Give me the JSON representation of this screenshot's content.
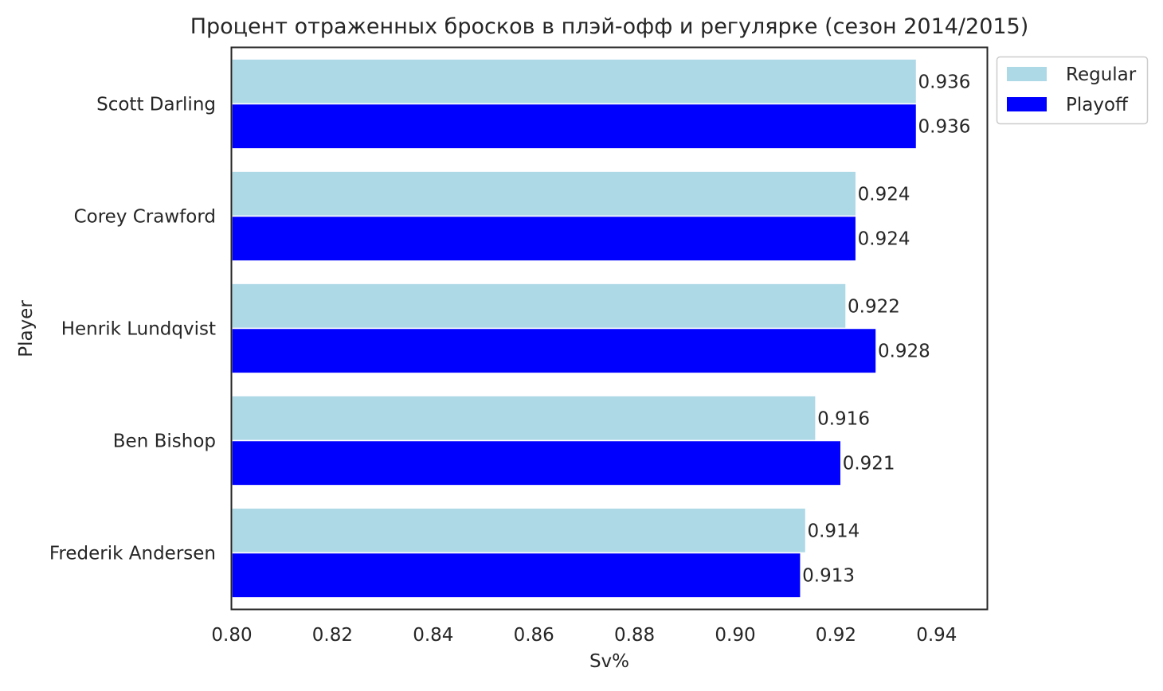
{
  "chart_data": {
    "type": "bar",
    "orientation": "horizontal",
    "title": "Процент отраженных бросков в плэй-офф и регулярке (сезон 2014/2015)",
    "xlabel": "Sv%",
    "ylabel": "Player",
    "categories": [
      "Scott Darling",
      "Corey Crawford",
      "Henrik Lundqvist",
      "Ben Bishop",
      "Frederik Andersen"
    ],
    "series": [
      {
        "name": "Regular",
        "color": "#add8e6",
        "values": [
          0.936,
          0.924,
          0.922,
          0.916,
          0.914
        ],
        "labels": [
          "0.936",
          "0.924",
          "0.922",
          "0.916",
          "0.914"
        ]
      },
      {
        "name": "Playoff",
        "color": "#0000ff",
        "values": [
          0.936,
          0.924,
          0.928,
          0.921,
          0.913
        ],
        "labels": [
          "0.936",
          "0.924",
          "0.928",
          "0.921",
          "0.913"
        ]
      }
    ],
    "xlim": [
      0.8,
      0.95
    ],
    "xticks": [
      "0.80",
      "0.82",
      "0.84",
      "0.86",
      "0.88",
      "0.90",
      "0.92",
      "0.94"
    ],
    "xtick_values": [
      0.8,
      0.82,
      0.84,
      0.86,
      0.88,
      0.9,
      0.92,
      0.94
    ],
    "grid": false,
    "legend_position": "outside top-right"
  }
}
